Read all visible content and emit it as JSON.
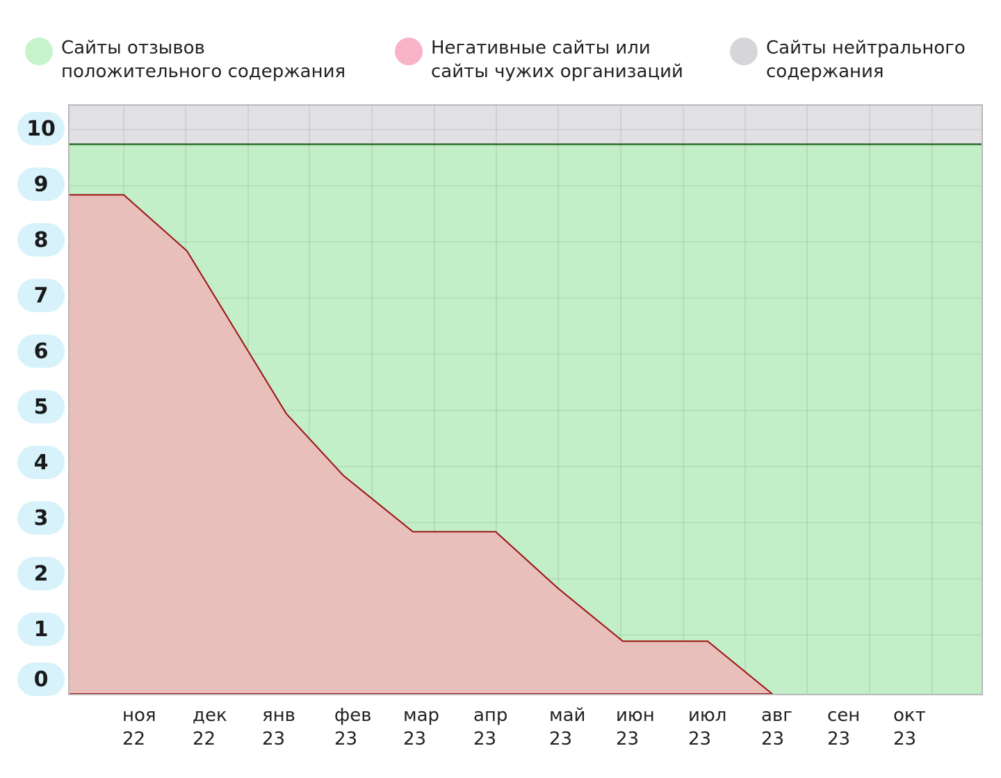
{
  "legend": [
    {
      "line1": "Сайты отзывов",
      "line2": "положительного содержания",
      "color": "#c6f2cc"
    },
    {
      "line1": "Негативные сайты или",
      "line2": "сайты чужих организаций",
      "color": "#f9b3c7"
    },
    {
      "line1": "Сайты нейтрального",
      "line2": "содержания",
      "color": "#d6d6d9"
    }
  ],
  "chart_data": {
    "type": "area",
    "title": "",
    "xlabel": "",
    "ylabel": "",
    "ylim": [
      0,
      10.5
    ],
    "y_ticks": [
      "0",
      "1",
      "2",
      "3",
      "4",
      "5",
      "6",
      "7",
      "8",
      "9",
      "10"
    ],
    "x_tick_labels": [
      {
        "line1": "ноя",
        "line2": "22"
      },
      {
        "line1": "дек",
        "line2": "22"
      },
      {
        "line1": "янв",
        "line2": "23"
      },
      {
        "line1": "фев",
        "line2": "23"
      },
      {
        "line1": "мар",
        "line2": "23"
      },
      {
        "line1": "апр",
        "line2": "23"
      },
      {
        "line1": "май",
        "line2": "23"
      },
      {
        "line1": "июн",
        "line2": "23"
      },
      {
        "line1": "июл",
        "line2": "23"
      },
      {
        "line1": "авг",
        "line2": "23"
      },
      {
        "line1": "сен",
        "line2": "23"
      },
      {
        "line1": "окт",
        "line2": "23"
      }
    ],
    "grid": true,
    "legend_position": "top",
    "series": [
      {
        "name": "Негативные сайты или сайты чужих организаций",
        "color": "#e8bfbb",
        "line_color": "#9b1010",
        "x": [
          0,
          1,
          2,
          3,
          4,
          5,
          6,
          7,
          8,
          9,
          10,
          11,
          12,
          13
        ],
        "values": [
          8.9,
          8.9,
          7.9,
          5.0,
          3.9,
          2.9,
          2.9,
          1.9,
          0.95,
          0.95,
          0.0,
          0.0,
          0.0,
          0.0
        ]
      },
      {
        "name": "Сайты отзывов положительного содержания",
        "color": "#c2eec8",
        "line_color": "#2b6b2b",
        "x": [
          0,
          13
        ],
        "values": [
          9.8,
          9.8
        ]
      },
      {
        "name": "Сайты нейтрального содержания",
        "color": "#e1e1e4",
        "x": [
          0,
          13
        ],
        "values": [
          10.5,
          10.5
        ]
      }
    ]
  }
}
